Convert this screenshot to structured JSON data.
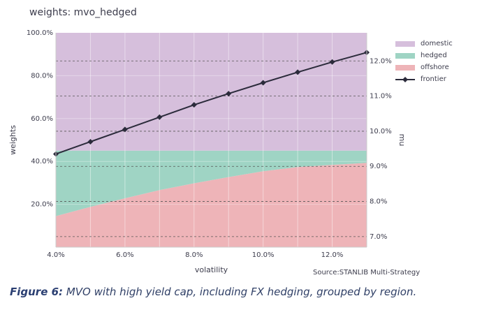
{
  "title": "weights: mvo_hedged",
  "caption": {
    "lead": "Figure 6:",
    "text": " MVO with high yield cap, including FX hedging, grouped by region."
  },
  "source": "Source:STANLIB Multi-Strategy",
  "colors": {
    "domestic": "#d6bfdc",
    "hedged": "#9fd4c4",
    "offshore": "#eeb4b8",
    "frontier": "#2b2b3b"
  },
  "chart_data": {
    "type": "area",
    "xlabel": "volatility",
    "ylabel_left": "weights",
    "ylabel_right": "mu",
    "x_ticks": [
      "4.0%",
      "6.0%",
      "8.0%",
      "10.0%",
      "12.0%"
    ],
    "y_left_ticks": [
      "20.0%",
      "40.0%",
      "60.0%",
      "80.0%",
      "100.0%"
    ],
    "y_right_ticks": [
      "7.0%",
      "8.0%",
      "9.0%",
      "10.0%",
      "11.0%",
      "12.0%"
    ],
    "xlim": [
      4,
      13
    ],
    "ylim_left": [
      0,
      100
    ],
    "ylim_right": [
      6.7,
      12.8
    ],
    "grid": true,
    "legend_position": "top-right",
    "x": [
      4,
      5,
      6,
      7,
      8,
      9,
      10,
      11,
      12,
      13
    ],
    "series": [
      {
        "name": "offshore",
        "kind": "area",
        "values": [
          14.5,
          18.8,
          22.8,
          26.6,
          29.8,
          32.7,
          35.4,
          37.4,
          38.4,
          39.3
        ]
      },
      {
        "name": "hedged",
        "kind": "area",
        "values": [
          30.5,
          26.2,
          22.2,
          18.4,
          15.2,
          12.3,
          9.6,
          7.6,
          6.6,
          5.7
        ]
      },
      {
        "name": "domestic",
        "kind": "area",
        "values": [
          55.0,
          55.0,
          55.0,
          55.0,
          55.0,
          55.0,
          55.0,
          55.0,
          55.0,
          55.0
        ]
      },
      {
        "name": "frontier",
        "kind": "line",
        "axis": "right",
        "values": [
          9.35,
          9.7,
          10.05,
          10.4,
          10.75,
          11.07,
          11.38,
          11.68,
          11.97,
          12.24
        ]
      }
    ]
  }
}
